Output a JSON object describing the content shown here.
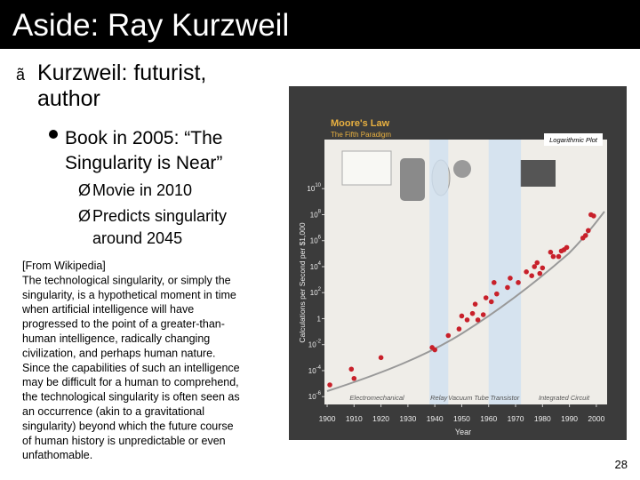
{
  "title": "Aside: Ray Kurzweil",
  "bullets": [
    {
      "marker": "ã",
      "lines": [
        "Kurzweil:  futurist,",
        "author"
      ]
    },
    {
      "lines": [
        "Book in 2005:  “The",
        "Singularity is Near”"
      ]
    },
    {
      "marker": "Ø",
      "lines": [
        "Movie in 2010"
      ]
    },
    {
      "marker": "Ø",
      "lines": [
        "Predicts singularity",
        "around 2045"
      ]
    }
  ],
  "wiki": [
    "[From Wikipedia]",
    "The technological singularity, or simply the",
    "singularity, is a hypothetical moment in time",
    "when artificial intelligence will have",
    "progressed to the point of a greater-than-",
    "human intelligence, radically changing",
    "civilization, and perhaps human nature.",
    "Since the capabilities of such an intelligence",
    "may be difficult for a human to comprehend,",
    "the technological singularity is often seen as",
    "an occurrence (akin to a gravitational",
    "singularity) beyond which the future course",
    "of human history is unpredictable or even",
    "unfathomable."
  ],
  "page_number": "28",
  "chart_data": {
    "type": "scatter",
    "title": "Moore's Law",
    "subtitle": "The Fifth Paradigm",
    "annotation": "Logarithmic Plot",
    "x_label": "Year",
    "y_label": "Calculations per Second per $1,000",
    "x": [
      1901,
      1909,
      1910,
      1920,
      1939,
      1940,
      1945,
      1949,
      1950,
      1952,
      1954,
      1955,
      1956,
      1958,
      1959,
      1961,
      1962,
      1963,
      1967,
      1968,
      1971,
      1974,
      1976,
      1977,
      1978,
      1979,
      1980,
      1983,
      1984,
      1986,
      1987,
      1988,
      1989,
      1995,
      1996,
      1997,
      1998,
      1999
    ],
    "values": [
      8e-06,
      0.00013,
      2.5e-05,
      0.001,
      0.006,
      0.004,
      0.05,
      0.16,
      1.6,
      0.8,
      2.5,
      13,
      0.8,
      2,
      40,
      20,
      600,
      80,
      250,
      1300,
      600,
      4000,
      2000,
      10000,
      20000,
      3000,
      8000,
      130000,
      60000,
      60000,
      160000,
      200000,
      300000,
      1600000,
      2500000,
      6000000,
      100000000,
      80000000
    ],
    "color": "#c8202a",
    "log_y": true,
    "xlim": [
      1899,
      2004
    ],
    "ylim": [
      2.5e-07,
      60000000000000.0
    ],
    "xticks": [
      1900,
      1910,
      1920,
      1930,
      1940,
      1950,
      1960,
      1970,
      1980,
      1990,
      2000
    ],
    "yticks": [
      {
        "value": 1e-06,
        "label": "10",
        "exponent": "-6"
      },
      {
        "value": 0.0001,
        "label": "10",
        "exponent": "-4"
      },
      {
        "value": 0.01,
        "label": "10",
        "exponent": "-2"
      },
      1,
      {
        "value": 100,
        "label": "10",
        "exponent": "2"
      },
      {
        "value": 10000,
        "label": "10",
        "exponent": "4"
      },
      {
        "value": 1000000,
        "label": "10",
        "exponent": "6"
      },
      {
        "value": 100000000,
        "label": "10",
        "exponent": "8"
      },
      {
        "value": 10000000000,
        "label": "10",
        "exponent": "10"
      }
    ],
    "paradigms": [
      {
        "label": "Electromechanical",
        "from": 1899,
        "to": 1938,
        "shaded": false
      },
      {
        "label": "Relay",
        "from": 1938,
        "to": 1945,
        "shaded": true
      },
      {
        "label": "Vacuum Tube",
        "from": 1945,
        "to": 1960,
        "shaded": false
      },
      {
        "label": "Transistor",
        "from": 1960,
        "to": 1972,
        "shaded": true
      },
      {
        "label": "Integrated Circuit",
        "from": 1972,
        "to": 2004,
        "shaded": false
      }
    ]
  }
}
